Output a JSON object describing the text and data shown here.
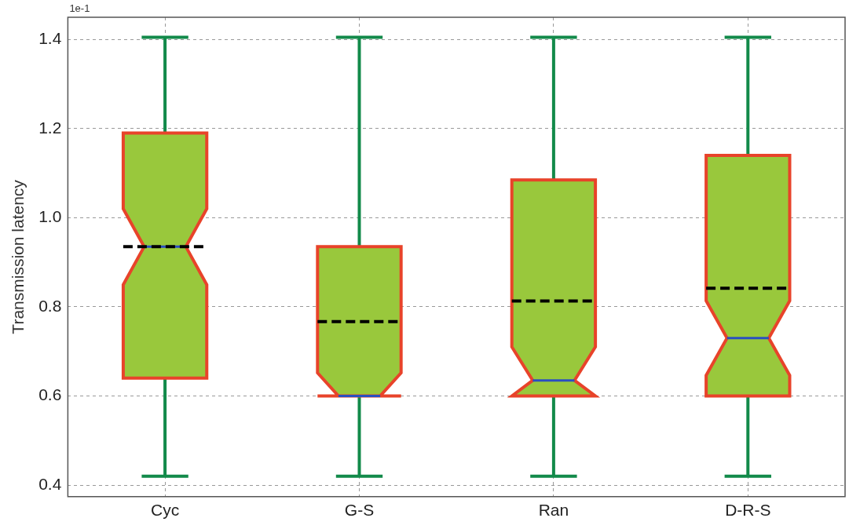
{
  "chart_data": {
    "type": "box",
    "ylabel": "Transmission latency",
    "annotations": [
      "1e-1"
    ],
    "categories": [
      "Cyc",
      "G-S",
      "Ran",
      "D-R-S"
    ],
    "boxes": [
      {
        "low": 0.42,
        "q1": 0.64,
        "median": 0.935,
        "q3": 1.19,
        "high": 1.405,
        "mean": 0.935
      },
      {
        "low": 0.42,
        "q1": 0.6,
        "median": 0.6,
        "q3": 0.935,
        "high": 1.405,
        "mean": 0.767
      },
      {
        "low": 0.42,
        "q1": 0.6,
        "median": 0.635,
        "q3": 1.085,
        "high": 1.405,
        "mean": 0.813
      },
      {
        "low": 0.42,
        "q1": 0.6,
        "median": 0.73,
        "q3": 1.14,
        "high": 1.405,
        "mean": 0.842
      }
    ],
    "color": "#99c83c",
    "ylim": [
      0.374,
      1.45
    ],
    "yticks": [
      {
        "value": 0.4,
        "label": "0.4"
      },
      {
        "value": 0.6,
        "label": "0.6"
      },
      {
        "value": 0.8,
        "label": "0.8"
      },
      {
        "value": 1.0,
        "label": "1.0"
      },
      {
        "value": 1.2,
        "label": "1.2"
      },
      {
        "value": 1.4,
        "label": "1.4"
      }
    ],
    "grid": true,
    "legend": false
  }
}
